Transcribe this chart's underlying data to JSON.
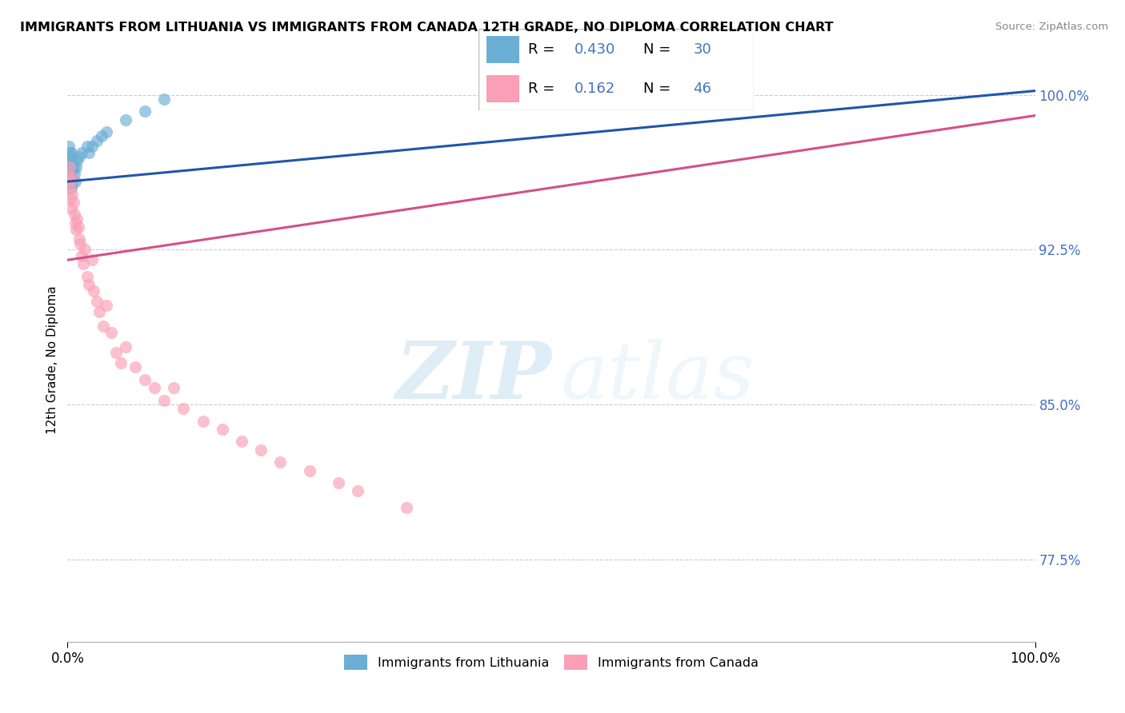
{
  "title": "IMMIGRANTS FROM LITHUANIA VS IMMIGRANTS FROM CANADA 12TH GRADE, NO DIPLOMA CORRELATION CHART",
  "source": "Source: ZipAtlas.com",
  "ylabel": "12th Grade, No Diploma",
  "xlim": [
    0.0,
    1.0
  ],
  "ylim": [
    0.735,
    1.008
  ],
  "yticks": [
    0.775,
    0.85,
    0.925,
    1.0
  ],
  "ytick_labels": [
    "77.5%",
    "85.0%",
    "92.5%",
    "100.0%"
  ],
  "xtick_labels": [
    "0.0%",
    "100.0%"
  ],
  "r_lithuania": 0.43,
  "n_lithuania": 30,
  "r_canada": 0.162,
  "n_canada": 46,
  "blue_color": "#6baed6",
  "pink_color": "#fa9fb5",
  "blue_line_color": "#2255aa",
  "pink_line_color": "#d45087",
  "legend_label_1": "Immigrants from Lithuania",
  "legend_label_2": "Immigrants from Canada",
  "watermark_zip": "ZIP",
  "watermark_atlas": "atlas",
  "blue_scatter_x": [
    0.001,
    0.001,
    0.002,
    0.002,
    0.002,
    0.003,
    0.003,
    0.003,
    0.004,
    0.004,
    0.004,
    0.005,
    0.005,
    0.005,
    0.006,
    0.007,
    0.008,
    0.009,
    0.01,
    0.012,
    0.015,
    0.02,
    0.022,
    0.025,
    0.03,
    0.035,
    0.04,
    0.06,
    0.08,
    0.1
  ],
  "blue_scatter_y": [
    0.975,
    0.965,
    0.972,
    0.968,
    0.96,
    0.97,
    0.965,
    0.958,
    0.972,
    0.96,
    0.955,
    0.968,
    0.963,
    0.957,
    0.965,
    0.962,
    0.958,
    0.965,
    0.968,
    0.97,
    0.972,
    0.975,
    0.972,
    0.975,
    0.978,
    0.98,
    0.982,
    0.988,
    0.992,
    0.998
  ],
  "pink_scatter_x": [
    0.001,
    0.002,
    0.002,
    0.003,
    0.003,
    0.004,
    0.005,
    0.005,
    0.006,
    0.007,
    0.008,
    0.009,
    0.01,
    0.011,
    0.012,
    0.013,
    0.015,
    0.016,
    0.018,
    0.02,
    0.022,
    0.025,
    0.027,
    0.03,
    0.033,
    0.037,
    0.04,
    0.045,
    0.05,
    0.055,
    0.06,
    0.07,
    0.08,
    0.09,
    0.1,
    0.11,
    0.12,
    0.14,
    0.16,
    0.18,
    0.2,
    0.22,
    0.25,
    0.28,
    0.3,
    0.35
  ],
  "pink_scatter_y": [
    0.96,
    0.955,
    0.965,
    0.95,
    0.958,
    0.945,
    0.96,
    0.952,
    0.948,
    0.942,
    0.938,
    0.935,
    0.94,
    0.936,
    0.93,
    0.928,
    0.922,
    0.918,
    0.925,
    0.912,
    0.908,
    0.92,
    0.905,
    0.9,
    0.895,
    0.888,
    0.898,
    0.885,
    0.875,
    0.87,
    0.878,
    0.868,
    0.862,
    0.858,
    0.852,
    0.858,
    0.848,
    0.842,
    0.838,
    0.832,
    0.828,
    0.822,
    0.818,
    0.812,
    0.808,
    0.8
  ],
  "blue_trend_x": [
    0.0,
    1.0
  ],
  "blue_trend_y": [
    0.958,
    1.002
  ],
  "pink_trend_x": [
    0.0,
    1.0
  ],
  "pink_trend_y": [
    0.92,
    0.99
  ]
}
